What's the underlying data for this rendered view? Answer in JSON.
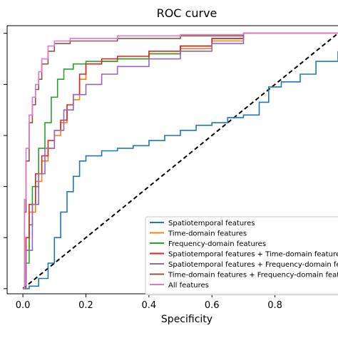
{
  "chart_data": {
    "type": "line",
    "title": "ROC curve",
    "xlabel": "Specificity",
    "ylabel": "",
    "xlim": [
      -0.05,
      1.0
    ],
    "ylim": [
      -0.02,
      1.03
    ],
    "xticks": [
      "0.0",
      "0.2",
      "0.4",
      "0.6",
      "0.8"
    ],
    "xtick_values": [
      0.0,
      0.2,
      0.4,
      0.6,
      0.8
    ],
    "ytick_values": [
      0.0,
      0.2,
      0.4,
      0.6,
      0.8,
      1.0
    ],
    "legend_position": "lower-right",
    "diagonal": {
      "points": [
        [
          0,
          0
        ],
        [
          1,
          1
        ]
      ],
      "color": "#000000",
      "style": "dashed"
    },
    "series": [
      {
        "name": "Spatiotemporal features",
        "color": "#1f77b4",
        "points": [
          [
            0,
            0
          ],
          [
            0.02,
            0.01
          ],
          [
            0.05,
            0.04
          ],
          [
            0.08,
            0.1
          ],
          [
            0.1,
            0.2
          ],
          [
            0.12,
            0.3
          ],
          [
            0.14,
            0.38
          ],
          [
            0.16,
            0.44
          ],
          [
            0.18,
            0.5
          ],
          [
            0.2,
            0.52
          ],
          [
            0.25,
            0.54
          ],
          [
            0.3,
            0.55
          ],
          [
            0.35,
            0.56
          ],
          [
            0.4,
            0.58
          ],
          [
            0.45,
            0.6
          ],
          [
            0.5,
            0.62
          ],
          [
            0.55,
            0.64
          ],
          [
            0.6,
            0.65
          ],
          [
            0.65,
            0.67
          ],
          [
            0.7,
            0.68
          ],
          [
            0.75,
            0.73
          ],
          [
            0.78,
            0.79
          ],
          [
            0.82,
            0.81
          ],
          [
            0.88,
            0.84
          ],
          [
            0.93,
            0.89
          ],
          [
            1.0,
            0.93
          ]
        ]
      },
      {
        "name": "Time-domain features",
        "color": "#ff7f0e",
        "points": [
          [
            0,
            0
          ],
          [
            0.01,
            0.15
          ],
          [
            0.02,
            0.3
          ],
          [
            0.04,
            0.42
          ],
          [
            0.06,
            0.5
          ],
          [
            0.08,
            0.55
          ],
          [
            0.1,
            0.6
          ],
          [
            0.12,
            0.65
          ],
          [
            0.14,
            0.7
          ],
          [
            0.16,
            0.74
          ],
          [
            0.18,
            0.82
          ],
          [
            0.2,
            0.88
          ],
          [
            0.25,
            0.89
          ],
          [
            0.3,
            0.9
          ],
          [
            0.4,
            0.92
          ],
          [
            0.5,
            0.94
          ],
          [
            0.6,
            0.97
          ],
          [
            0.7,
            1.0
          ],
          [
            1.0,
            1.0
          ]
        ]
      },
      {
        "name": "Frequency-domain features",
        "color": "#2ca02c",
        "points": [
          [
            0,
            0
          ],
          [
            0.01,
            0.1
          ],
          [
            0.02,
            0.25
          ],
          [
            0.03,
            0.4
          ],
          [
            0.05,
            0.55
          ],
          [
            0.07,
            0.65
          ],
          [
            0.09,
            0.75
          ],
          [
            0.11,
            0.82
          ],
          [
            0.13,
            0.86
          ],
          [
            0.16,
            0.88
          ],
          [
            0.2,
            0.89
          ],
          [
            0.3,
            0.9
          ],
          [
            0.4,
            0.92
          ],
          [
            0.5,
            0.95
          ],
          [
            0.6,
            0.98
          ],
          [
            0.7,
            1.0
          ],
          [
            1.0,
            1.0
          ]
        ]
      },
      {
        "name": "Spatiotemporal features + Time-domain features",
        "color": "#d62728",
        "points": [
          [
            0,
            0
          ],
          [
            0.01,
            0.2
          ],
          [
            0.02,
            0.33
          ],
          [
            0.04,
            0.45
          ],
          [
            0.06,
            0.52
          ],
          [
            0.08,
            0.58
          ],
          [
            0.1,
            0.62
          ],
          [
            0.12,
            0.66
          ],
          [
            0.14,
            0.72
          ],
          [
            0.16,
            0.76
          ],
          [
            0.18,
            0.84
          ],
          [
            0.2,
            0.88
          ],
          [
            0.25,
            0.9
          ],
          [
            0.3,
            0.91
          ],
          [
            0.4,
            0.93
          ],
          [
            0.5,
            0.95
          ],
          [
            0.6,
            0.98
          ],
          [
            0.7,
            1.0
          ],
          [
            1.0,
            1.0
          ]
        ]
      },
      {
        "name": "Spatiotemporal features + Frequency-domain features",
        "color": "#9467bd",
        "points": [
          [
            0,
            0
          ],
          [
            0.01,
            0.15
          ],
          [
            0.03,
            0.33
          ],
          [
            0.05,
            0.45
          ],
          [
            0.07,
            0.55
          ],
          [
            0.1,
            0.62
          ],
          [
            0.13,
            0.7
          ],
          [
            0.16,
            0.76
          ],
          [
            0.2,
            0.8
          ],
          [
            0.25,
            0.84
          ],
          [
            0.3,
            0.87
          ],
          [
            0.4,
            0.9
          ],
          [
            0.5,
            0.93
          ],
          [
            0.6,
            0.96
          ],
          [
            0.7,
            1.0
          ],
          [
            1.0,
            1.0
          ]
        ]
      },
      {
        "name": "Time-domain features + Frequency-domain features",
        "color": "#8c564b",
        "points": [
          [
            0,
            0
          ],
          [
            0.005,
            0.3
          ],
          [
            0.01,
            0.5
          ],
          [
            0.02,
            0.65
          ],
          [
            0.03,
            0.72
          ],
          [
            0.04,
            0.78
          ],
          [
            0.05,
            0.82
          ],
          [
            0.06,
            0.88
          ],
          [
            0.08,
            0.93
          ],
          [
            0.1,
            0.96
          ],
          [
            0.15,
            0.97
          ],
          [
            0.3,
            0.98
          ],
          [
            0.5,
            0.99
          ],
          [
            0.7,
            1.0
          ],
          [
            1.0,
            1.0
          ]
        ]
      },
      {
        "name": "All features",
        "color": "#e377c2",
        "points": [
          [
            0,
            0
          ],
          [
            0.005,
            0.35
          ],
          [
            0.01,
            0.55
          ],
          [
            0.02,
            0.68
          ],
          [
            0.03,
            0.75
          ],
          [
            0.04,
            0.8
          ],
          [
            0.05,
            0.85
          ],
          [
            0.06,
            0.9
          ],
          [
            0.08,
            0.95
          ],
          [
            0.1,
            0.97
          ],
          [
            0.15,
            0.98
          ],
          [
            0.3,
            0.99
          ],
          [
            0.5,
            0.995
          ],
          [
            0.7,
            1.0
          ],
          [
            1.0,
            1.0
          ]
        ]
      }
    ]
  }
}
